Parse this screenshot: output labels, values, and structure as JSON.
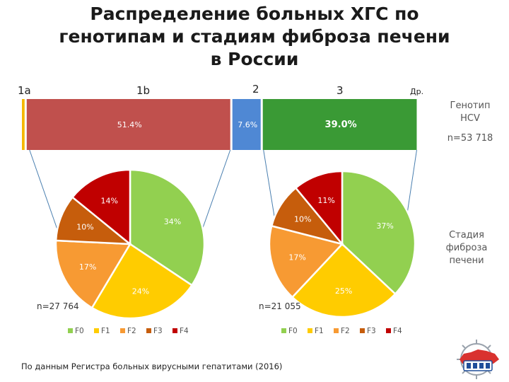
{
  "title_lines": [
    "Распределение больных ХГС по",
    "генотипам и стадиям фиброза печени",
    "в России"
  ],
  "side_labels": {
    "genotype_line1": "Генотип",
    "genotype_line2": "HCV",
    "genotype_n": "n=53 718",
    "stage_line1": "Стадия",
    "stage_line2": "фиброза",
    "stage_line3": "печени"
  },
  "footnote": "По данным Регистра больных вирусными гепатитами (2016)",
  "colors": {
    "g1a": "#f5b800",
    "g1b": "#c0504d",
    "g2": "#4f88d4",
    "g3": "#3a9a35",
    "F0": "#92d050",
    "F1": "#ffcc00",
    "F2": "#f79a33",
    "F3": "#c65d0c",
    "F4": "#c00000"
  },
  "chart_data": [
    {
      "type": "bar",
      "orientation": "horizontal-stacked",
      "categories": [
        "1a",
        "1b",
        "2",
        "3",
        "Др."
      ],
      "values": [
        1.2,
        51.4,
        7.6,
        39.0,
        0.8
      ],
      "value_labels": [
        "",
        "51.4%",
        "7.6%",
        "39.0%",
        ""
      ],
      "unit": "%"
    },
    {
      "type": "pie",
      "categories": [
        "F0",
        "F1",
        "F2",
        "F3",
        "F4"
      ],
      "values": [
        34,
        24,
        17,
        10,
        14
      ],
      "labels": [
        "34%",
        "24%",
        "17%",
        "10%",
        "14%"
      ],
      "n_label": "n=27 764",
      "legend": [
        "F0",
        "F1",
        "F2",
        "F3",
        "F4"
      ]
    },
    {
      "type": "pie",
      "categories": [
        "F0",
        "F1",
        "F2",
        "F3",
        "F4"
      ],
      "values": [
        37,
        25,
        17,
        10,
        11
      ],
      "labels": [
        "37%",
        "25%",
        "17%",
        "10%",
        "11%"
      ],
      "n_label": "n=21 055",
      "legend": [
        "F0",
        "F1",
        "F2",
        "F3",
        "F4"
      ]
    }
  ]
}
